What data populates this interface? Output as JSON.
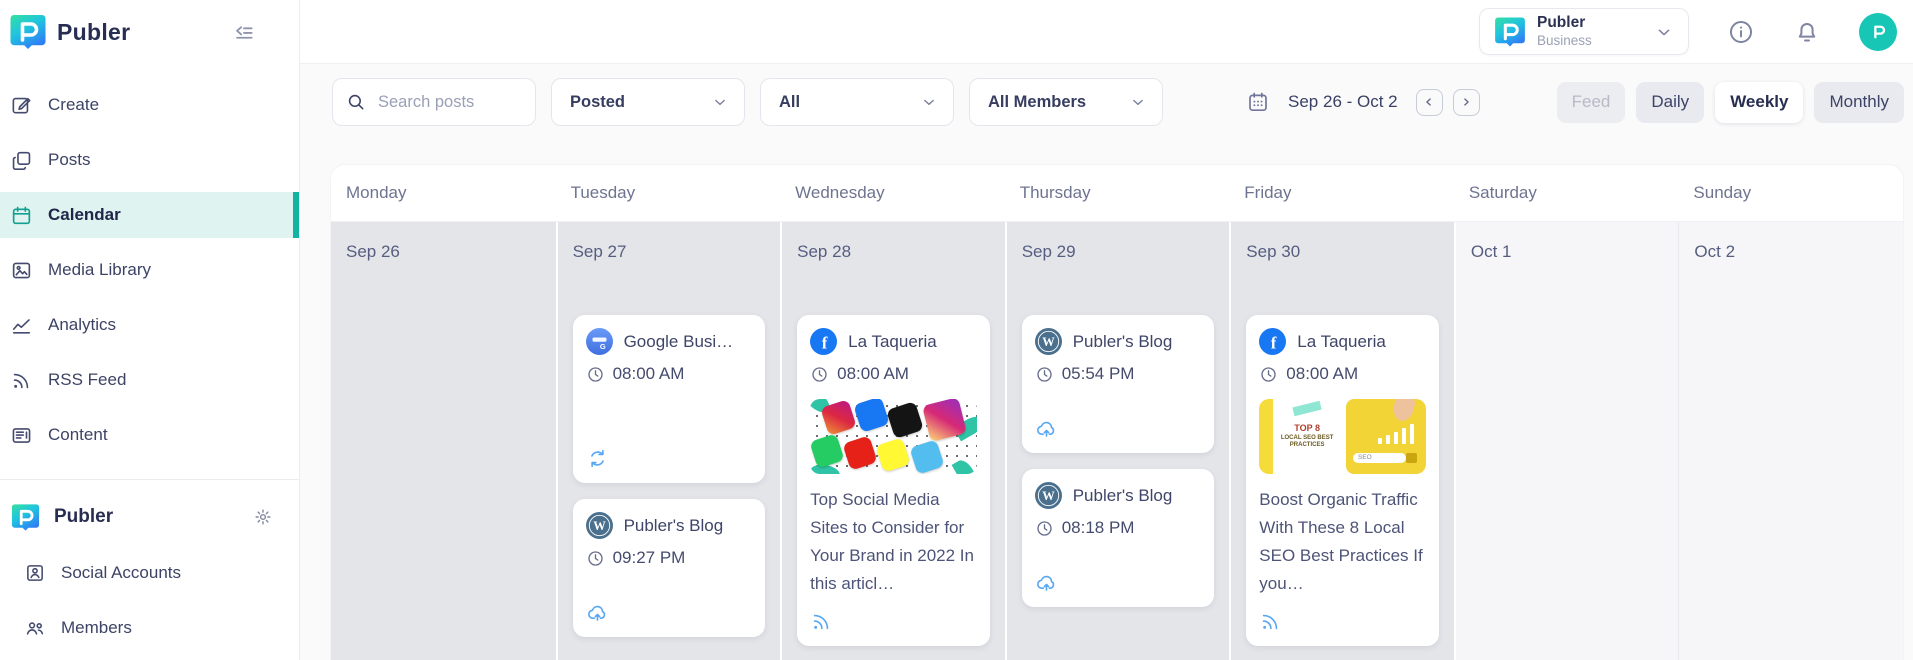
{
  "brand": {
    "name": "Publer"
  },
  "colors": {
    "accent_teal": "#13b3a2",
    "active_nav_bg": "#dff3f0",
    "status_icon_blue": "#58a7f3",
    "facebook": "#1877f2",
    "wordpress": "#4a708e",
    "google_business": "#3f6fe0",
    "avatar_teal": "#17c6b4",
    "past_column_bg": "#e4e5e9",
    "weekend_column_bg": "#f6f6f8"
  },
  "sidebar": {
    "nav": [
      {
        "label": "Create",
        "icon": "compose",
        "active": false
      },
      {
        "label": "Posts",
        "icon": "posts",
        "active": false
      },
      {
        "label": "Calendar",
        "icon": "calendar",
        "active": true
      },
      {
        "label": "Media Library",
        "icon": "media",
        "active": false
      },
      {
        "label": "Analytics",
        "icon": "analytics",
        "active": false
      },
      {
        "label": "RSS Feed",
        "icon": "rss",
        "active": false
      },
      {
        "label": "Content",
        "icon": "content",
        "active": false
      }
    ],
    "workspace": {
      "name": "Publer"
    },
    "workspace_items": [
      {
        "label": "Social Accounts",
        "icon": "social-accounts"
      },
      {
        "label": "Members",
        "icon": "members"
      }
    ]
  },
  "topbar": {
    "workspace_name": "Publer",
    "workspace_plan": "Business"
  },
  "toolbar": {
    "search_placeholder": "Search posts",
    "filters": [
      {
        "label": "Posted"
      },
      {
        "label": "All"
      },
      {
        "label": "All Members"
      }
    ],
    "date_range": "Sep 26 - Oct 2",
    "views": [
      {
        "label": "Feed",
        "state": "disabled"
      },
      {
        "label": "Daily",
        "state": "normal"
      },
      {
        "label": "Weekly",
        "state": "active"
      },
      {
        "label": "Monthly",
        "state": "normal"
      }
    ]
  },
  "calendar": {
    "days": [
      {
        "name": "Monday",
        "date": "Sep 26",
        "shaded": true,
        "posts": []
      },
      {
        "name": "Tuesday",
        "date": "Sep 27",
        "shaded": true,
        "posts": [
          {
            "network": "google-business",
            "account": "Google Busi…",
            "time": "08:00 AM",
            "status": "recycle",
            "tall": true
          },
          {
            "network": "wordpress",
            "account": "Publer's Blog",
            "time": "09:27 PM",
            "status": "cloud-upload"
          }
        ]
      },
      {
        "name": "Wednesday",
        "date": "Sep 28",
        "shaded": true,
        "posts": [
          {
            "network": "facebook",
            "account": "La Taqueria",
            "time": "08:00 AM",
            "thumbnail": {
              "type": "social-collage"
            },
            "text": "Top Social Media Sites to Consider for Your Brand in 2022 In this articl…",
            "status": "rss"
          }
        ]
      },
      {
        "name": "Thursday",
        "date": "Sep 29",
        "shaded": true,
        "posts": [
          {
            "network": "wordpress",
            "account": "Publer's Blog",
            "time": "05:54 PM",
            "status": "cloud-upload"
          },
          {
            "network": "wordpress",
            "account": "Publer's Blog",
            "time": "08:18 PM",
            "status": "cloud-upload"
          }
        ]
      },
      {
        "name": "Friday",
        "date": "Sep 30",
        "shaded": true,
        "posts": [
          {
            "network": "facebook",
            "account": "La Taqueria",
            "time": "08:00 AM",
            "thumbnail": {
              "type": "seo-yellow",
              "texts": {
                "top": "TOP 8",
                "sub": "LOCAL SEO BEST PRACTICES",
                "bar": "SEO"
              }
            },
            "text": "Boost Organic Traffic With These 8 Local SEO Best Practices  If you…",
            "status": "rss"
          }
        ]
      },
      {
        "name": "Saturday",
        "date": "Oct 1",
        "shaded": false,
        "posts": []
      },
      {
        "name": "Sunday",
        "date": "Oct 2",
        "shaded": false,
        "posts": []
      }
    ]
  }
}
